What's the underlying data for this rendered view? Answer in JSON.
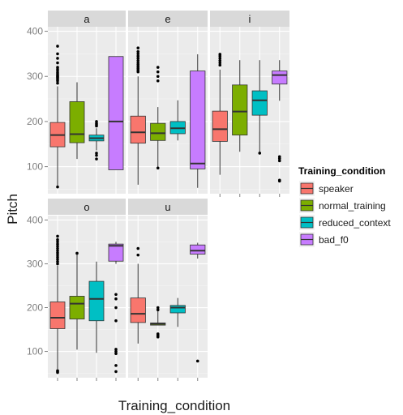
{
  "chart_data": {
    "type": "boxplot",
    "facet_by": "vowel",
    "xlabel": "Training_condition",
    "ylabel": "Pitch",
    "ylim": [
      40,
      410
    ],
    "yticks": [
      100,
      200,
      300,
      400
    ],
    "grid": true,
    "legend": {
      "title": "Training_condition",
      "placement": "right",
      "entries": [
        {
          "name": "speaker",
          "color": "#F8766D"
        },
        {
          "name": "normal_training",
          "color": "#7CAE00"
        },
        {
          "name": "reduced_context",
          "color": "#00BFC4"
        },
        {
          "name": "bad_f0",
          "color": "#C77CFF"
        }
      ]
    },
    "facets": [
      {
        "label": "a",
        "boxes": [
          {
            "condition": "speaker",
            "min": 57,
            "q1": 144,
            "median": 170,
            "q3": 198,
            "max": 278,
            "outliers": [
              55,
              285,
              290,
              293,
              296,
              298,
              300,
              302,
              305,
              308,
              312,
              316,
              320,
              330,
              340,
              350,
              367
            ]
          },
          {
            "condition": "normal_training",
            "min": 117,
            "q1": 153,
            "median": 172,
            "q3": 244,
            "max": 287,
            "outliers": []
          },
          {
            "condition": "reduced_context",
            "min": 136,
            "q1": 157,
            "median": 163,
            "q3": 170,
            "max": 185,
            "outliers": [
              117,
              125,
              130,
              190,
              193,
              196,
              200
            ]
          },
          {
            "condition": "bad_f0",
            "min": 93,
            "q1": 93,
            "median": 200,
            "q3": 344,
            "max": 344,
            "outliers": []
          }
        ]
      },
      {
        "label": "e",
        "boxes": [
          {
            "condition": "speaker",
            "min": 60,
            "q1": 152,
            "median": 176,
            "q3": 212,
            "max": 300,
            "outliers": [
              310,
              314,
              318,
              322,
              326,
              330,
              335,
              340,
              345,
              350,
              355,
              363
            ]
          },
          {
            "condition": "normal_training",
            "min": 100,
            "q1": 158,
            "median": 174,
            "q3": 196,
            "max": 232,
            "outliers": [
              97,
              290,
              300,
              310,
              320
            ]
          },
          {
            "condition": "reduced_context",
            "min": 158,
            "q1": 173,
            "median": 185,
            "q3": 200,
            "max": 247,
            "outliers": []
          },
          {
            "condition": "bad_f0",
            "min": 53,
            "q1": 95,
            "median": 107,
            "q3": 312,
            "max": 349,
            "outliers": []
          }
        ]
      },
      {
        "label": "i",
        "boxes": [
          {
            "condition": "speaker",
            "min": 82,
            "q1": 156,
            "median": 183,
            "q3": 223,
            "max": 315,
            "outliers": [
              325,
              330,
              335,
              340,
              345,
              349
            ]
          },
          {
            "condition": "normal_training",
            "min": 133,
            "q1": 170,
            "median": 222,
            "q3": 281,
            "max": 336,
            "outliers": []
          },
          {
            "condition": "reduced_context",
            "min": 131,
            "q1": 214,
            "median": 247,
            "q3": 268,
            "max": 336,
            "outliers": [
              130
            ]
          },
          {
            "condition": "bad_f0",
            "min": 246,
            "q1": 283,
            "median": 303,
            "q3": 312,
            "max": 336,
            "outliers": [
              68,
              70,
              113,
              118,
              122
            ]
          }
        ]
      },
      {
        "label": "o",
        "boxes": [
          {
            "condition": "speaker",
            "min": 60,
            "q1": 152,
            "median": 177,
            "q3": 213,
            "max": 296,
            "outliers": [
              52,
              54,
              56,
              300,
              305,
              310,
              315,
              320,
              325,
              330,
              335,
              340,
              345,
              350,
              355,
              363
            ]
          },
          {
            "condition": "normal_training",
            "min": 104,
            "q1": 174,
            "median": 209,
            "q3": 226,
            "max": 322,
            "outliers": [
              324
            ]
          },
          {
            "condition": "reduced_context",
            "min": 97,
            "q1": 170,
            "median": 220,
            "q3": 260,
            "max": 305,
            "outliers": []
          },
          {
            "condition": "bad_f0",
            "min": 300,
            "q1": 306,
            "median": 341,
            "q3": 345,
            "max": 350,
            "outliers": [
              54,
              68,
              95,
              100,
              105,
              170,
              200,
              220,
              230
            ]
          }
        ]
      },
      {
        "label": "u",
        "boxes": [
          {
            "condition": "speaker",
            "min": 118,
            "q1": 166,
            "median": 186,
            "q3": 222,
            "max": 300,
            "outliers": [
              320,
              335
            ]
          },
          {
            "condition": "normal_training",
            "min": 160,
            "q1": 160,
            "median": 163,
            "q3": 165,
            "max": 192,
            "outliers": [
              133,
              135,
              138,
              140,
              195,
              200
            ]
          },
          {
            "condition": "reduced_context",
            "min": 156,
            "q1": 188,
            "median": 200,
            "q3": 205,
            "max": 222,
            "outliers": []
          },
          {
            "condition": "bad_f0",
            "min": 312,
            "q1": 322,
            "median": 330,
            "q3": 343,
            "max": 348,
            "outliers": [
              78
            ]
          }
        ]
      }
    ]
  }
}
